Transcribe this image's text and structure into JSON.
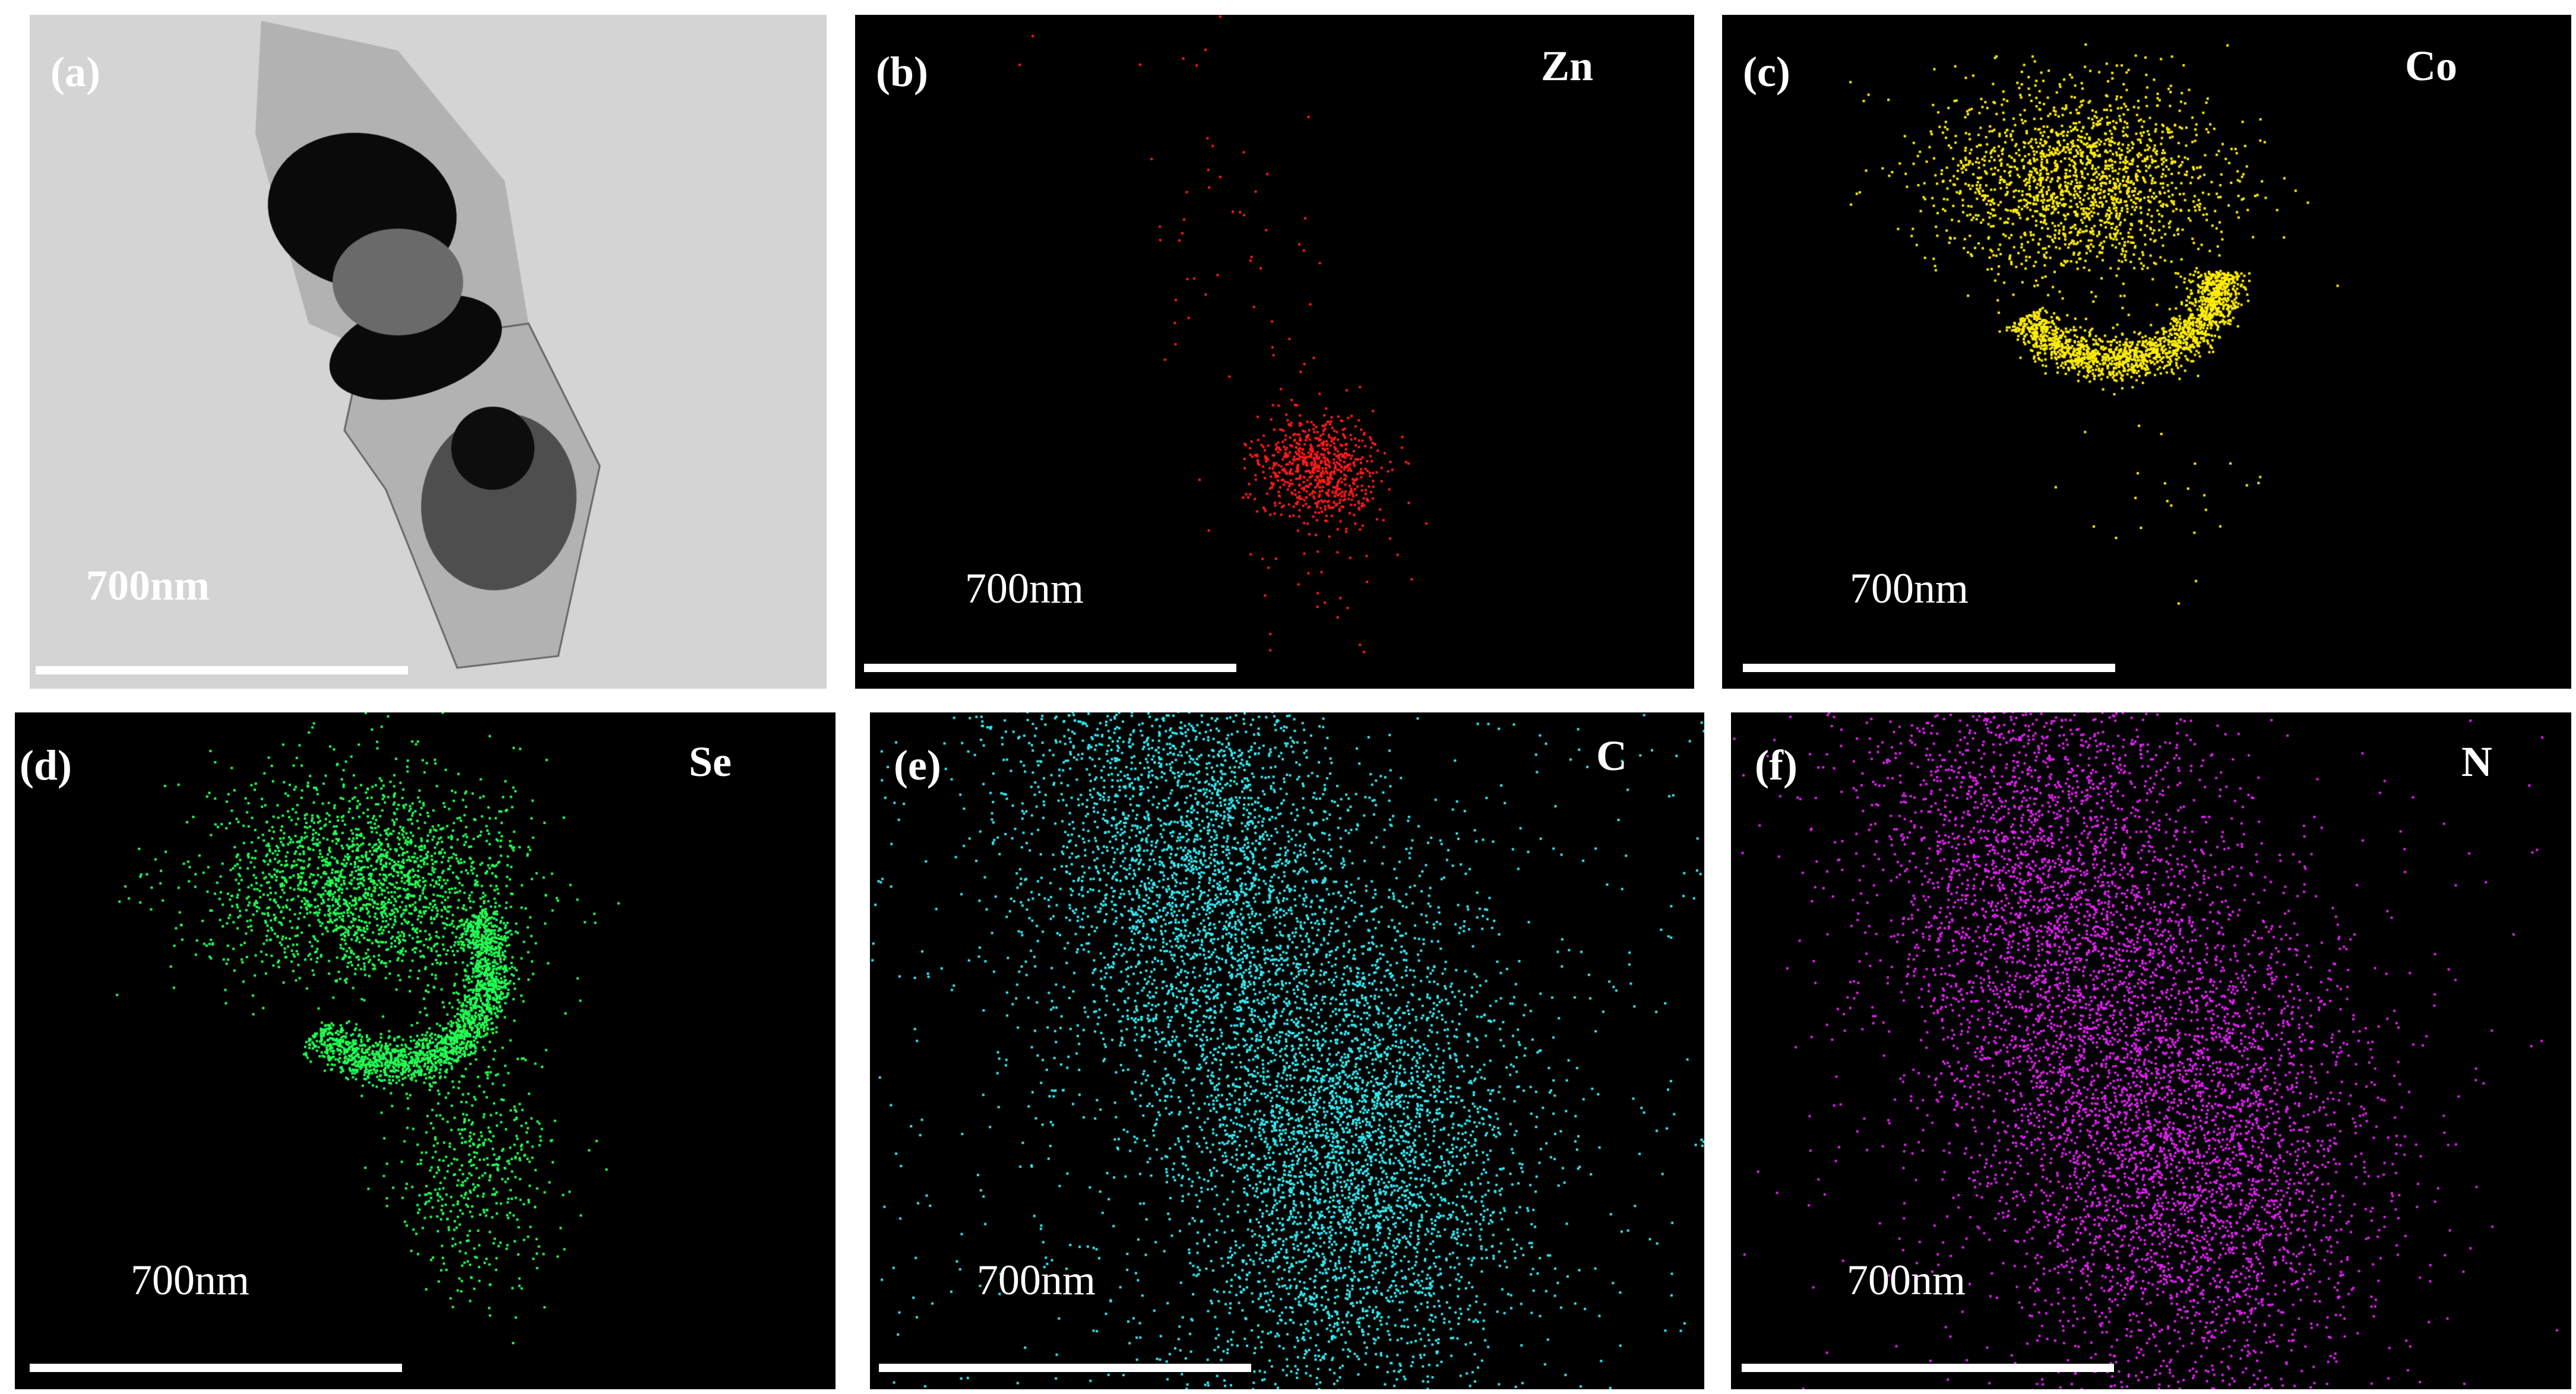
{
  "panels": [
    {
      "id": "a",
      "label": "(a)",
      "element": "",
      "scale": "700nm",
      "type": "tem",
      "color": "#cfcfcf"
    },
    {
      "id": "b",
      "label": "(b)",
      "element": "Zn",
      "scale": "700nm",
      "type": "map",
      "color": "#ff1a1a"
    },
    {
      "id": "c",
      "label": "(c)",
      "element": "Co",
      "scale": "700nm",
      "type": "map",
      "color": "#ffee00"
    },
    {
      "id": "d",
      "label": "(d)",
      "element": "Se",
      "scale": "700nm",
      "type": "map",
      "color": "#22ff55"
    },
    {
      "id": "e",
      "label": "(e)",
      "element": "C",
      "scale": "700nm",
      "type": "map",
      "color": "#33e8f0"
    },
    {
      "id": "f",
      "label": "(f)",
      "element": "N",
      "scale": "700nm",
      "type": "map",
      "color": "#e020f0"
    }
  ]
}
